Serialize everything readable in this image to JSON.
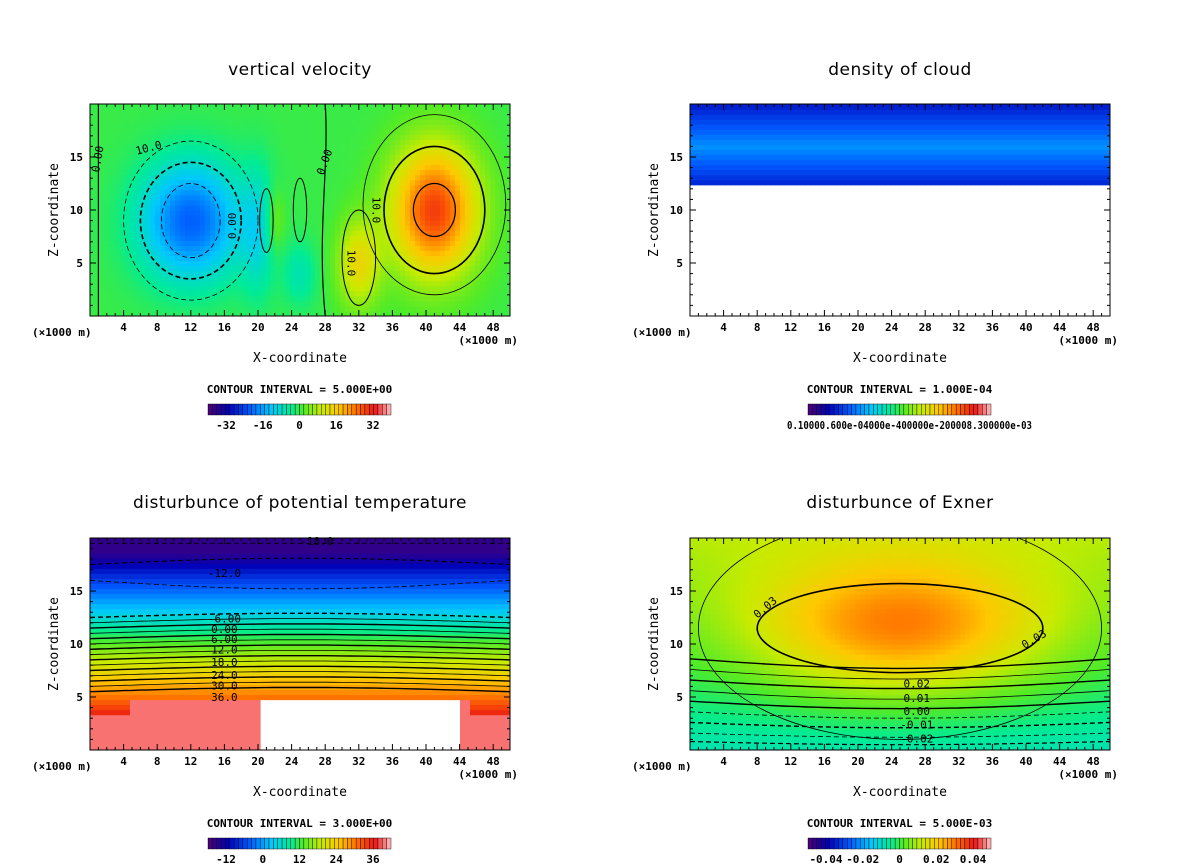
{
  "chart_data": [
    {
      "type": "heatmap",
      "title": "vertical velocity",
      "xlabel": "X-coordinate",
      "ylabel": "Z-coordinate",
      "x_unit_label": "(×1000 m)",
      "xlim": [
        0,
        50
      ],
      "ylim": [
        0,
        20
      ],
      "xticks": [
        4,
        8,
        12,
        16,
        20,
        24,
        28,
        32,
        36,
        40,
        44,
        48
      ],
      "yticks": [
        5,
        10,
        15
      ],
      "contour_interval_text": "CONTOUR INTERVAL = 5.000E+00",
      "colorbar_ticks": [
        "-32",
        "-16",
        "0",
        "16",
        "32"
      ],
      "contour_labels": [
        "0.00",
        "10.0",
        "0.00",
        "0.00",
        "10.0",
        "10.0"
      ],
      "features": [
        {
          "kind": "min",
          "x": 12,
          "z": 9,
          "value": -20
        },
        {
          "kind": "max",
          "x": 41,
          "z": 10,
          "value": 25
        },
        {
          "kind": "max",
          "x": 32,
          "z": 5,
          "value": 12
        }
      ]
    },
    {
      "type": "heatmap",
      "title": "density of cloud",
      "xlabel": "X-coordinate",
      "ylabel": "Z-coordinate",
      "x_unit_label": "(×1000 m)",
      "xlim": [
        0,
        50
      ],
      "ylim": [
        0,
        20
      ],
      "xticks": [
        4,
        8,
        12,
        16,
        20,
        24,
        28,
        32,
        36,
        40,
        44,
        48
      ],
      "yticks": [
        5,
        10,
        15
      ],
      "contour_interval_text": "CONTOUR INTERVAL = 1.000E-04",
      "colorbar_tick_text": "0.10000.600e-04000e-400000e-200008.300000e-03",
      "cloud_base_z": 12.5
    },
    {
      "type": "heatmap",
      "title": "disturbunce of potential temperature",
      "xlabel": "X-coordinate",
      "ylabel": "Z-coordinate",
      "x_unit_label": "(×1000 m)",
      "xlim": [
        0,
        50
      ],
      "ylim": [
        0,
        20
      ],
      "xticks": [
        4,
        8,
        12,
        16,
        20,
        24,
        28,
        32,
        36,
        40,
        44,
        48
      ],
      "yticks": [
        5,
        10,
        15
      ],
      "contour_interval_text": "CONTOUR INTERVAL = 3.000E+00",
      "colorbar_ticks": [
        "-12",
        "0",
        "12",
        "24",
        "36"
      ],
      "contour_labels": [
        "-18.0",
        "-12.0",
        "-6.00",
        "0.00",
        "6.00",
        "12.0",
        "18.0",
        "24.0",
        "30.0",
        "36.0"
      ]
    },
    {
      "type": "heatmap",
      "title": "disturbunce of Exner",
      "xlabel": "X-coordinate",
      "ylabel": "Z-coordinate",
      "x_unit_label": "(×1000 m)",
      "xlim": [
        0,
        50
      ],
      "ylim": [
        0,
        20
      ],
      "xticks": [
        4,
        8,
        12,
        16,
        20,
        24,
        28,
        32,
        36,
        40,
        44,
        48
      ],
      "yticks": [
        5,
        10,
        15
      ],
      "contour_interval_text": "CONTOUR INTERVAL = 5.000E-03",
      "colorbar_ticks": [
        "-0.04",
        "-0.02",
        "0",
        "0.02",
        "0.04"
      ],
      "contour_labels": [
        "0.03",
        "0.03",
        "0.02",
        "0.01",
        "0.00",
        "-0.01",
        "-0.02"
      ]
    }
  ]
}
